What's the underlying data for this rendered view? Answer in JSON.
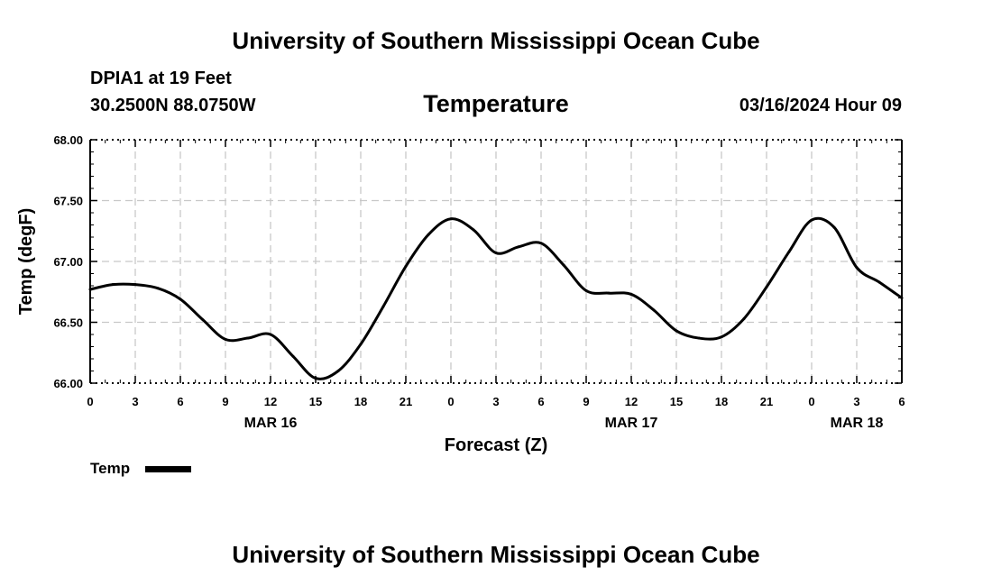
{
  "header": {
    "title": "University of Southern Mississippi Ocean Cube",
    "station": "DPIA1 at 19 Feet",
    "coords": "30.2500N  88.0750W",
    "variable": "Temperature",
    "datetime": "03/16/2024 Hour 09"
  },
  "footer": {
    "title": "University of Southern Mississippi Ocean Cube"
  },
  "legend": {
    "label": "Temp",
    "color": "#000000"
  },
  "chart_data": {
    "type": "line",
    "title": "Temperature",
    "xlabel": "Forecast (Z)",
    "ylabel": "Temp (degF)",
    "ylim": [
      66.0,
      68.0
    ],
    "yticks": [
      "66.00",
      "66.50",
      "67.00",
      "67.50",
      "68.00"
    ],
    "xlim": [
      0,
      54
    ],
    "xtick_hours": [
      0,
      3,
      6,
      9,
      12,
      15,
      18,
      21,
      24,
      27,
      30,
      33,
      36,
      39,
      42,
      45,
      48,
      51,
      54
    ],
    "xtick_labels": [
      "0",
      "3",
      "6",
      "9",
      "12",
      "15",
      "18",
      "21",
      "0",
      "3",
      "6",
      "9",
      "12",
      "15",
      "18",
      "21",
      "0",
      "3",
      "6"
    ],
    "date_labels": [
      {
        "label": "MAR 16",
        "hour": 12
      },
      {
        "label": "MAR 17",
        "hour": 36
      },
      {
        "label": "MAR 18",
        "hour": 51
      }
    ],
    "grid": true,
    "series": [
      {
        "name": "Temp",
        "color": "#000000",
        "x": [
          0,
          1.5,
          3,
          4.5,
          6,
          7.5,
          9,
          10.5,
          12,
          13.5,
          15,
          16.5,
          18,
          19.5,
          21,
          22.5,
          24,
          25.5,
          27,
          28.5,
          30,
          31.5,
          33,
          34.5,
          36,
          37.5,
          39,
          40.5,
          42,
          43.5,
          45,
          46.5,
          48,
          49.5,
          51,
          52.5,
          54
        ],
        "y": [
          66.77,
          66.81,
          66.81,
          66.78,
          66.69,
          66.52,
          66.36,
          66.37,
          66.4,
          66.22,
          66.04,
          66.1,
          66.32,
          66.63,
          66.96,
          67.22,
          67.35,
          67.26,
          67.07,
          67.12,
          67.15,
          66.97,
          66.76,
          66.74,
          66.73,
          66.6,
          66.43,
          66.37,
          66.38,
          66.53,
          66.79,
          67.08,
          67.34,
          67.28,
          66.95,
          66.83,
          66.7
        ]
      }
    ]
  }
}
